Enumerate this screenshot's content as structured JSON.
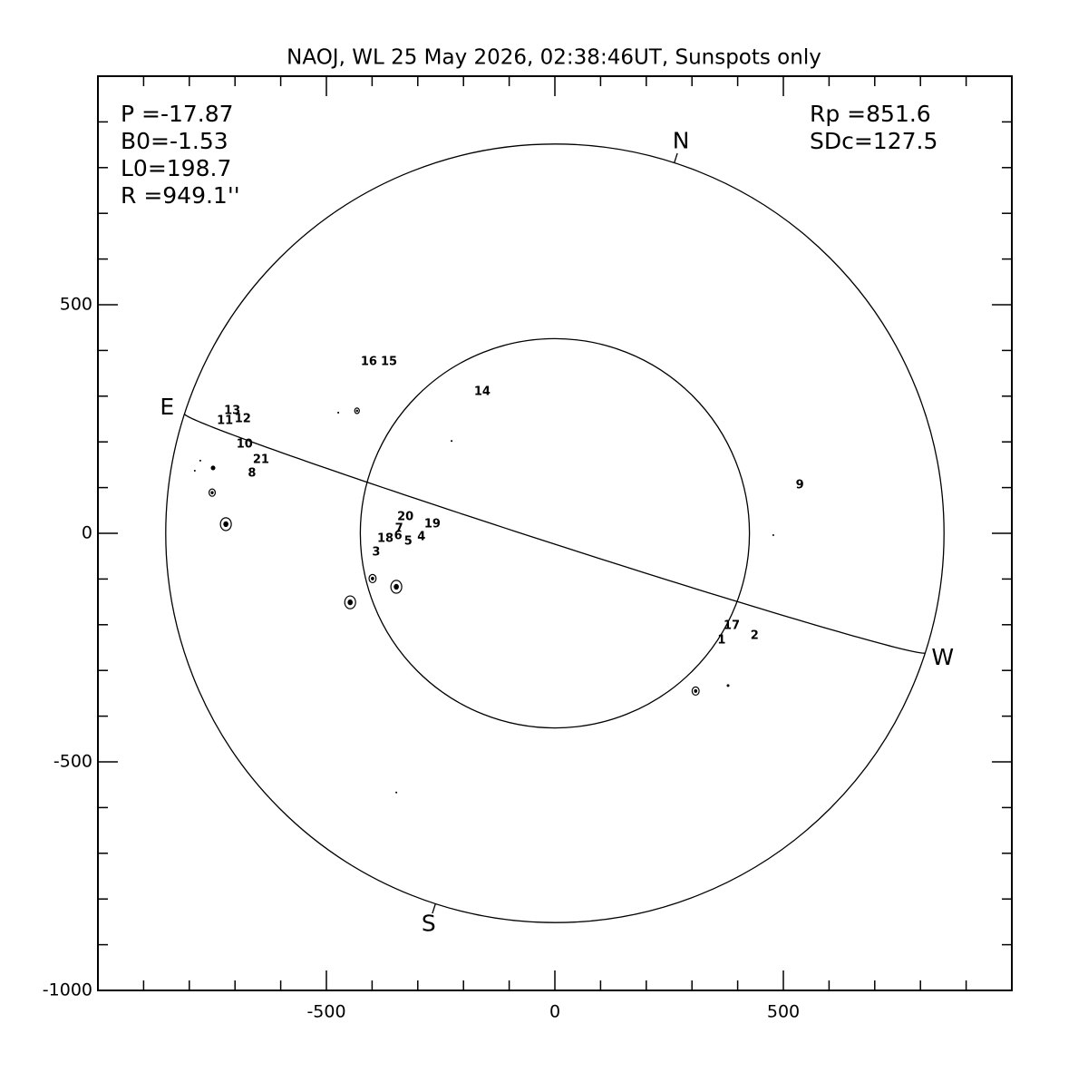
{
  "chart_data": {
    "type": "scatter",
    "title": "NAOJ, WL 25 May 2026, 02:38:46UT, Sunspots only",
    "left_annotations": [
      "P =-17.87",
      "B0=-1.53",
      "L0=198.7",
      "R =949.1''"
    ],
    "right_annotations": [
      "Rp =851.6",
      "SDc=127.5"
    ],
    "p_angle": -17.87,
    "b0": -1.53,
    "disk": {
      "radius": 851.6,
      "inner_radius": 425.8
    },
    "pole_labels": [
      "N",
      "E",
      "S",
      "W"
    ],
    "xlim": [
      -1000,
      1000
    ],
    "ylim": [
      -1000,
      1000
    ],
    "xticks": [
      -500,
      0,
      500
    ],
    "yticks": [
      -1000,
      -500,
      0,
      500
    ],
    "xminor_ticks": [
      -900,
      -800,
      -700,
      -600,
      -400,
      -300,
      -200,
      -100,
      100,
      200,
      300,
      400,
      600,
      700,
      800,
      900
    ],
    "yminor_ticks": [
      -900,
      -800,
      -700,
      -600,
      -400,
      -300,
      -200,
      -100,
      100,
      200,
      300,
      400,
      600,
      700,
      800,
      900
    ],
    "labels": [
      {
        "text": "16",
        "x": -407,
        "y": 375
      },
      {
        "text": "15",
        "x": -363,
        "y": 375
      },
      {
        "text": "14",
        "x": -159,
        "y": 310
      },
      {
        "text": "13",
        "x": -706,
        "y": 268
      },
      {
        "text": "11",
        "x": -722,
        "y": 246
      },
      {
        "text": "12",
        "x": -683,
        "y": 250
      },
      {
        "text": "10",
        "x": -679,
        "y": 194
      },
      {
        "text": "21",
        "x": -643,
        "y": 161
      },
      {
        "text": "8",
        "x": -663,
        "y": 131
      },
      {
        "text": "9",
        "x": 536,
        "y": 105
      },
      {
        "text": "20",
        "x": -327,
        "y": 36
      },
      {
        "text": "7",
        "x": -341,
        "y": 10
      },
      {
        "text": "19",
        "x": -268,
        "y": 20
      },
      {
        "text": "18",
        "x": -371,
        "y": -12
      },
      {
        "text": "6",
        "x": -343,
        "y": -6
      },
      {
        "text": "5",
        "x": -321,
        "y": -18
      },
      {
        "text": "4",
        "x": -292,
        "y": -8
      },
      {
        "text": "3",
        "x": -391,
        "y": -42
      },
      {
        "text": "17",
        "x": 387,
        "y": -202
      },
      {
        "text": "2",
        "x": 437,
        "y": -224
      },
      {
        "text": "1",
        "x": 365,
        "y": -234
      }
    ],
    "spots": {
      "x": [
        -474,
        -433,
        -226,
        -776,
        -788,
        -748,
        -750,
        -720,
        -448,
        -347,
        -399,
        478,
        308,
        379,
        -347
      ],
      "y": [
        264,
        268,
        202,
        159,
        137,
        143,
        89,
        20,
        -151,
        -117,
        -99,
        -4,
        -345,
        -333,
        -567
      ],
      "sizes": [
        2,
        6,
        2,
        2,
        2,
        5,
        8,
        14,
        14,
        14,
        9,
        2,
        9,
        3,
        1
      ]
    }
  }
}
